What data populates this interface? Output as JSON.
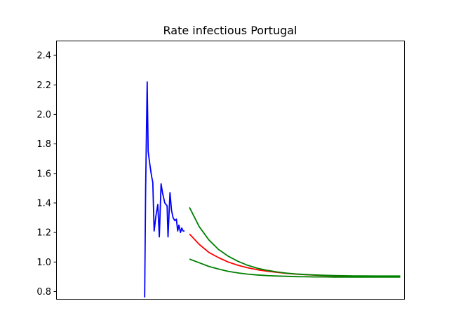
{
  "chart_data": {
    "type": "line",
    "title": "Rate infectious Portugal",
    "xlabel": "",
    "ylabel": "",
    "x_ticks_visible": false,
    "xlim": [
      0,
      180
    ],
    "ylim": [
      0.75,
      2.5
    ],
    "yticks": [
      0.8,
      1.0,
      1.2,
      1.4,
      1.6,
      1.8,
      2.0,
      2.2,
      2.4
    ],
    "ytick_labels": [
      "0.8",
      "1.0",
      "1.2",
      "1.4",
      "1.6",
      "1.8",
      "2.0",
      "2.2",
      "2.4"
    ],
    "grid": false,
    "legend": null,
    "series": [
      {
        "color": "#0000ff",
        "x": [
          45.8,
          46.3,
          47.1,
          47.6,
          48.6,
          49.4,
          50.0,
          50.7,
          51.6,
          52.6,
          53.4,
          54.3,
          55.0,
          56.2,
          57.4,
          57.9,
          58.9,
          59.7,
          60.5,
          61.4,
          62.2,
          62.9,
          63.5,
          64.3,
          65.0,
          65.7,
          66.4
        ],
        "y": [
          0.76,
          1.5,
          2.22,
          1.75,
          1.65,
          1.58,
          1.54,
          1.21,
          1.31,
          1.39,
          1.17,
          1.53,
          1.47,
          1.4,
          1.38,
          1.17,
          1.47,
          1.35,
          1.3,
          1.28,
          1.29,
          1.21,
          1.25,
          1.2,
          1.23,
          1.21,
          1.21
        ]
      },
      {
        "color": "#ff0000",
        "x": [
          69.0,
          74.0,
          79.0,
          84.0,
          89.0,
          94.0,
          99.0,
          104.0,
          109.0,
          114.0,
          119.0,
          124.0,
          129.0,
          134.0,
          139.0,
          144.0,
          149.0,
          154.0,
          159.0,
          164.0,
          169.0,
          174.0,
          178.0
        ],
        "y": [
          1.19,
          1.12,
          1.065,
          1.03,
          1.0,
          0.978,
          0.961,
          0.948,
          0.938,
          0.93,
          0.923,
          0.918,
          0.914,
          0.911,
          0.908,
          0.906,
          0.904,
          0.903,
          0.902,
          0.901,
          0.9,
          0.9,
          0.9
        ]
      },
      {
        "color": "#008000",
        "x": [
          69.0,
          74.0,
          79.0,
          84.0,
          89.0,
          94.0,
          99.0,
          104.0,
          109.0,
          114.0,
          119.0,
          124.0,
          129.0,
          134.0,
          139.0,
          144.0,
          149.0,
          154.0,
          159.0,
          164.0,
          169.0,
          174.0,
          178.0
        ],
        "y": [
          1.37,
          1.24,
          1.15,
          1.085,
          1.04,
          1.005,
          0.978,
          0.958,
          0.944,
          0.933,
          0.925,
          0.919,
          0.915,
          0.912,
          0.91,
          0.908,
          0.907,
          0.906,
          0.906,
          0.905,
          0.905,
          0.905,
          0.905
        ]
      },
      {
        "color": "#008000",
        "x": [
          69.0,
          74.0,
          79.0,
          84.0,
          89.0,
          94.0,
          99.0,
          104.0,
          109.0,
          114.0,
          119.0,
          124.0,
          129.0,
          134.0,
          139.0,
          144.0,
          149.0,
          154.0,
          159.0,
          164.0,
          169.0,
          174.0,
          178.0
        ],
        "y": [
          1.02,
          0.995,
          0.97,
          0.952,
          0.937,
          0.926,
          0.918,
          0.912,
          0.908,
          0.905,
          0.903,
          0.901,
          0.9,
          0.899,
          0.899,
          0.898,
          0.898,
          0.898,
          0.898,
          0.898,
          0.898,
          0.898,
          0.898
        ]
      }
    ]
  }
}
